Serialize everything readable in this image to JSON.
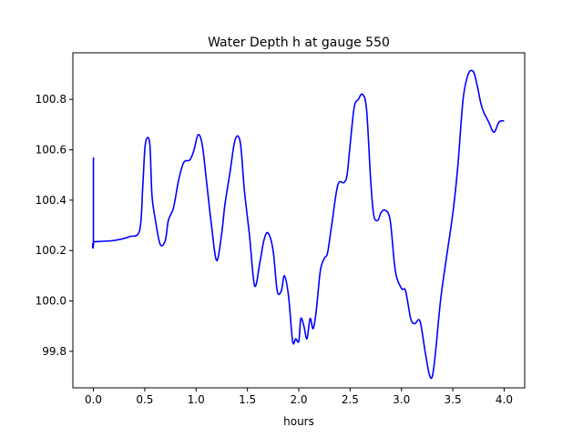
{
  "chart_data": {
    "type": "line",
    "title": "Water Depth h at gauge 550",
    "xlabel": "hours",
    "ylabel": "",
    "xlim": [
      -0.2,
      4.2
    ],
    "ylim": [
      99.655,
      100.985
    ],
    "xticks": [
      0.0,
      0.5,
      1.0,
      1.5,
      2.0,
      2.5,
      3.0,
      3.5,
      4.0
    ],
    "xtick_labels": [
      "0.0",
      "0.5",
      "1.0",
      "1.5",
      "2.0",
      "2.5",
      "3.0",
      "3.5",
      "4.0"
    ],
    "yticks": [
      99.8,
      100.0,
      100.2,
      100.4,
      100.6,
      100.8
    ],
    "ytick_labels": [
      "99.8",
      "100.0",
      "100.2",
      "100.4",
      "100.6",
      "100.8"
    ],
    "grid": false,
    "legend": "none",
    "series": [
      {
        "color": "#0000ff",
        "x": [
          0.0,
          0.0,
          0.01,
          0.2,
          0.35,
          0.45,
          0.48,
          0.5,
          0.52,
          0.55,
          0.57,
          0.6,
          0.65,
          0.7,
          0.73,
          0.78,
          0.83,
          0.88,
          0.94,
          0.98,
          1.02,
          1.06,
          1.1,
          1.15,
          1.2,
          1.25,
          1.28,
          1.33,
          1.38,
          1.43,
          1.47,
          1.52,
          1.57,
          1.62,
          1.66,
          1.7,
          1.75,
          1.79,
          1.83,
          1.86,
          1.9,
          1.94,
          1.97,
          2.0,
          2.02,
          2.05,
          2.08,
          2.11,
          2.14,
          2.17,
          2.21,
          2.25,
          2.28,
          2.32,
          2.38,
          2.44,
          2.47,
          2.5,
          2.54,
          2.58,
          2.62,
          2.66,
          2.7,
          2.73,
          2.77,
          2.8,
          2.84,
          2.89,
          2.94,
          3.0,
          3.04,
          3.09,
          3.13,
          3.18,
          3.23,
          3.27,
          3.3,
          3.33,
          3.38,
          3.43,
          3.47,
          3.51,
          3.55,
          3.6,
          3.65,
          3.7,
          3.74,
          3.77,
          3.8,
          3.85,
          3.9,
          3.95,
          4.0
        ],
        "y": [
          100.57,
          100.235,
          100.235,
          100.24,
          100.255,
          100.28,
          100.45,
          100.6,
          100.645,
          100.62,
          100.42,
          100.33,
          100.225,
          100.24,
          100.32,
          100.37,
          100.48,
          100.55,
          100.56,
          100.6,
          100.66,
          100.62,
          100.48,
          100.3,
          100.16,
          100.27,
          100.38,
          100.51,
          100.64,
          100.63,
          100.44,
          100.26,
          100.06,
          100.15,
          100.24,
          100.27,
          100.2,
          100.04,
          100.04,
          100.1,
          100.02,
          99.84,
          99.85,
          99.84,
          99.93,
          99.9,
          99.85,
          99.93,
          99.89,
          99.96,
          100.12,
          100.17,
          100.19,
          100.3,
          100.46,
          100.47,
          100.5,
          100.62,
          100.77,
          100.8,
          100.82,
          100.76,
          100.48,
          100.34,
          100.32,
          100.35,
          100.36,
          100.32,
          100.12,
          100.05,
          100.04,
          99.93,
          99.91,
          99.92,
          99.8,
          99.71,
          99.7,
          99.79,
          100.0,
          100.15,
          100.26,
          100.38,
          100.54,
          100.8,
          100.9,
          100.91,
          100.85,
          100.79,
          100.75,
          100.71,
          100.67,
          100.71,
          100.715
        ]
      }
    ]
  }
}
